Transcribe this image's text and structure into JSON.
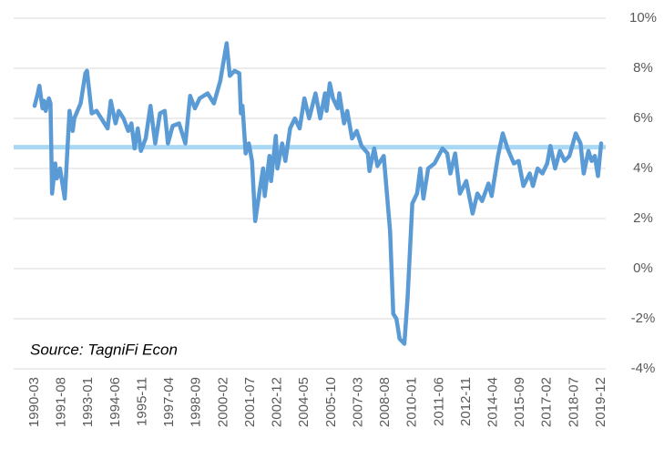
{
  "chart_data": {
    "type": "line",
    "annotation": "Source: TagniFi Econ",
    "x": [
      "1990-03",
      "1990-05",
      "1990-06",
      "1990-08",
      "1990-09",
      "1990-10",
      "1990-12",
      "1991-01",
      "1991-02",
      "1991-04",
      "1991-05",
      "1991-07",
      "1991-10",
      "1992-01",
      "1992-03",
      "1992-04",
      "1992-08",
      "1992-11",
      "1992-12",
      "1993-03",
      "1993-06",
      "1993-09",
      "1994-01",
      "1994-03",
      "1994-06",
      "1994-08",
      "1994-11",
      "1995-02",
      "1995-04",
      "1995-06",
      "1995-08",
      "1995-10",
      "1996-01",
      "1996-04",
      "1996-07",
      "1996-10",
      "1997-01",
      "1997-03",
      "1997-06",
      "1997-10",
      "1998-02",
      "1998-05",
      "1998-08",
      "1998-11",
      "1999-04",
      "1999-08",
      "1999-12",
      "2000-04",
      "2000-06",
      "2000-09",
      "2000-12",
      "2001-01",
      "2001-02",
      "2001-04",
      "2001-06",
      "2001-08",
      "2001-10",
      "2002-01",
      "2002-03",
      "2002-04",
      "2002-07",
      "2002-08",
      "2002-11",
      "2002-12",
      "2003-03",
      "2003-05",
      "2003-08",
      "2003-11",
      "2004-02",
      "2004-05",
      "2004-08",
      "2004-12",
      "2005-03",
      "2005-06",
      "2005-07",
      "2005-09",
      "2005-11",
      "2006-02",
      "2006-03",
      "2006-06",
      "2006-08",
      "2006-11",
      "2007-02",
      "2007-05",
      "2007-09",
      "2007-10",
      "2008-01",
      "2008-03",
      "2008-07",
      "2008-11",
      "2009-01",
      "2009-03",
      "2009-05",
      "2009-08",
      "2009-10",
      "2010-01",
      "2010-04",
      "2010-06",
      "2010-08",
      "2010-11",
      "2011-03",
      "2011-08",
      "2011-11",
      "2012-01",
      "2012-04",
      "2012-07",
      "2012-11",
      "2013-03",
      "2013-06",
      "2013-09",
      "2014-01",
      "2014-03",
      "2014-07",
      "2014-10",
      "2015-01",
      "2015-05",
      "2015-08",
      "2015-11",
      "2016-03",
      "2016-05",
      "2016-08",
      "2016-11",
      "2017-02",
      "2017-04",
      "2017-07",
      "2017-10",
      "2018-01",
      "2018-04",
      "2018-08",
      "2018-11",
      "2019-01",
      "2019-04",
      "2019-06",
      "2019-08",
      "2019-10",
      "2019-12"
    ],
    "series": [
      {
        "color": "#5b9bd5",
        "values": [
          6.5,
          7.0,
          7.3,
          6.4,
          6.7,
          6.3,
          6.8,
          6.6,
          3.0,
          4.2,
          3.6,
          4.0,
          2.8,
          6.3,
          5.5,
          6.0,
          6.6,
          7.8,
          7.9,
          6.2,
          6.3,
          6.0,
          5.6,
          6.7,
          5.8,
          6.3,
          6.0,
          5.5,
          5.8,
          4.8,
          5.6,
          4.7,
          5.2,
          6.5,
          5.0,
          6.2,
          6.3,
          5.0,
          5.7,
          5.8,
          5.0,
          6.9,
          6.4,
          6.8,
          7.0,
          6.6,
          7.5,
          9.0,
          7.7,
          7.9,
          7.8,
          6.2,
          6.5,
          4.6,
          5.0,
          4.3,
          1.9,
          3.2,
          4.0,
          2.9,
          4.5,
          3.5,
          5.3,
          4.0,
          5.0,
          4.3,
          5.6,
          6.0,
          5.6,
          6.8,
          6.0,
          7.0,
          6.0,
          7.0,
          6.3,
          7.4,
          6.8,
          6.4,
          7.0,
          5.8,
          6.3,
          5.2,
          5.5,
          4.9,
          4.6,
          3.9,
          4.8,
          4.1,
          4.5,
          1.5,
          -1.8,
          -2.0,
          -2.8,
          -3.0,
          -1.2,
          2.6,
          3.0,
          4.0,
          2.8,
          4.0,
          4.2,
          4.8,
          4.6,
          3.8,
          4.6,
          3.0,
          3.5,
          2.2,
          3.0,
          2.7,
          3.4,
          2.9,
          4.5,
          5.4,
          4.8,
          4.2,
          4.3,
          3.3,
          3.8,
          3.3,
          4.0,
          3.8,
          4.2,
          4.9,
          4.0,
          4.7,
          4.3,
          4.5,
          5.4,
          5.0,
          3.8,
          4.7,
          4.3,
          4.5,
          3.7,
          5.0
        ]
      }
    ],
    "reference_line": {
      "value": 4.85,
      "color": "#a9d8f5"
    },
    "xlim": [
      "1990-03",
      "2019-12"
    ],
    "xticks": [
      "1990-03",
      "1991-08",
      "1993-01",
      "1994-06",
      "1995-11",
      "1997-04",
      "1998-09",
      "2000-02",
      "2001-07",
      "2002-12",
      "2004-05",
      "2005-10",
      "2007-03",
      "2008-08",
      "2010-01",
      "2011-06",
      "2012-11",
      "2014-04",
      "2015-09",
      "2017-02",
      "2018-07",
      "2019-12"
    ],
    "ylim": [
      -4,
      10
    ],
    "yticks": [
      {
        "value": -4,
        "label": "-4%"
      },
      {
        "value": -2,
        "label": "-2%"
      },
      {
        "value": 0,
        "label": "0%"
      },
      {
        "value": 2,
        "label": "2%"
      },
      {
        "value": 4,
        "label": "4%"
      },
      {
        "value": 6,
        "label": "6%"
      },
      {
        "value": 8,
        "label": "8%"
      },
      {
        "value": 10,
        "label": "10%"
      }
    ],
    "grid": true
  }
}
